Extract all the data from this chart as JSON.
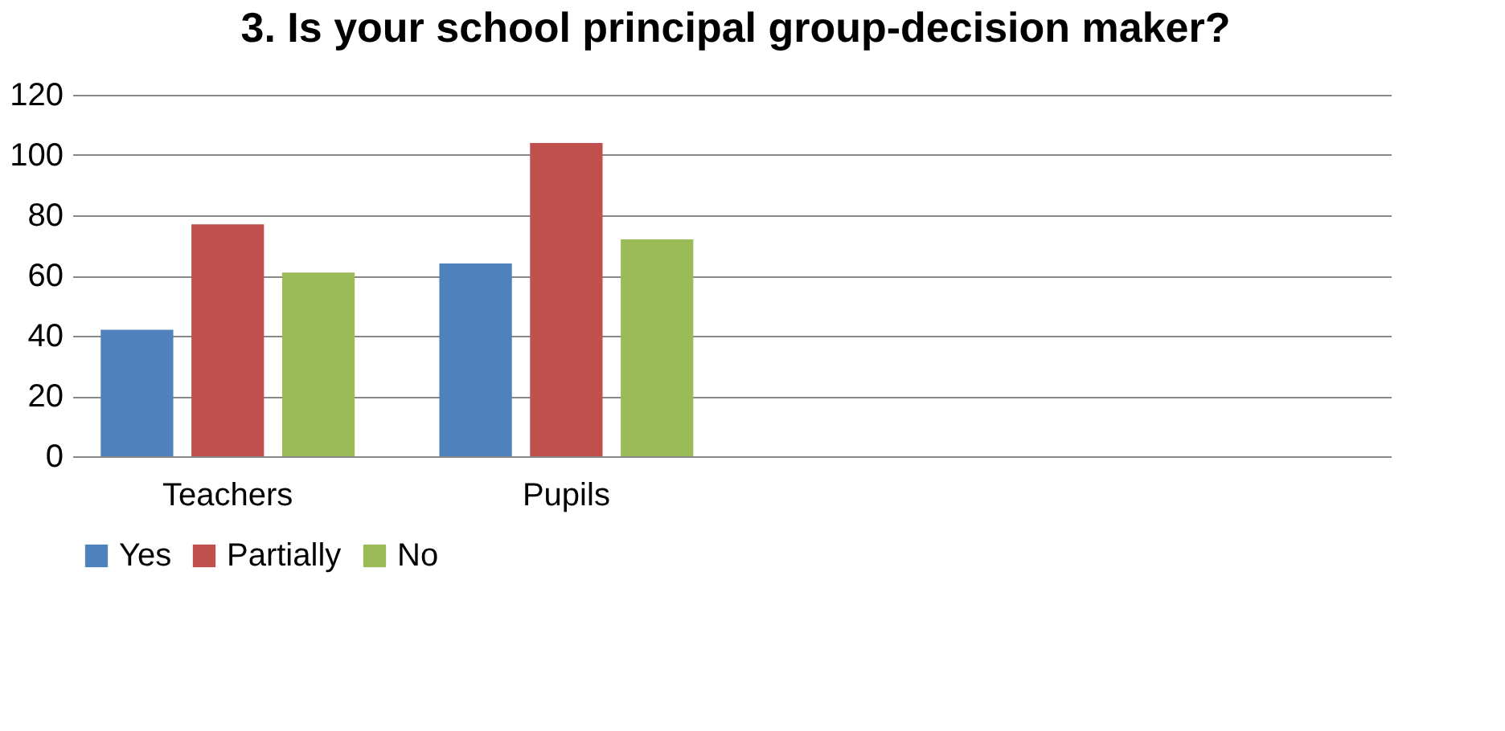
{
  "chart_data": {
    "type": "bar",
    "title": "3. Is your school principal group-decision maker?",
    "categories": [
      "Teachers",
      "Pupils",
      null,
      null
    ],
    "series": [
      {
        "name": "Yes",
        "color": "#4f81bd",
        "values": [
          42,
          64,
          null,
          null
        ]
      },
      {
        "name": "Partially",
        "color": "#c0504d",
        "values": [
          77,
          104,
          null,
          null
        ]
      },
      {
        "name": "No",
        "color": "#9bbb59",
        "values": [
          61,
          72,
          null,
          null
        ]
      }
    ],
    "ylim": [
      0,
      120
    ],
    "yticks": [
      0,
      20,
      40,
      60,
      80,
      100,
      120
    ],
    "grid": "y",
    "legend": "bottom"
  }
}
